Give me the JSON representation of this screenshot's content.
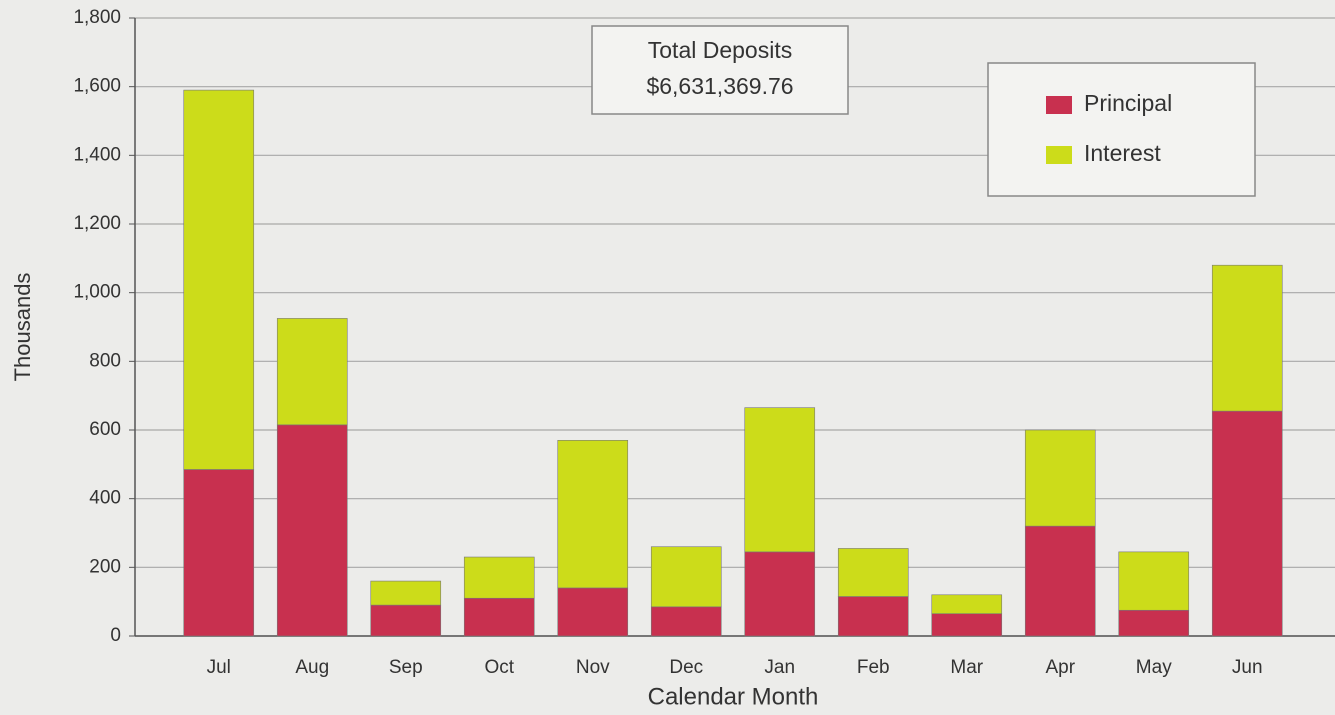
{
  "chart_data": {
    "type": "stacked_bar",
    "x_label": "Calendar Month",
    "y_label": "Thousands",
    "annotation": [
      "Total Deposits",
      "$6,631,369.76"
    ],
    "categories": [
      "Jul",
      "Aug",
      "Sep",
      "Oct",
      "Nov",
      "Dec",
      "Jan",
      "Feb",
      "Mar",
      "Apr",
      "May",
      "Jun"
    ],
    "series": [
      {
        "name": "Principal",
        "color": "#c8304f",
        "values": [
          485,
          615,
          90,
          110,
          140,
          85,
          245,
          115,
          65,
          320,
          75,
          655
        ]
      },
      {
        "name": "Interest",
        "color": "#ccdc1a",
        "values": [
          1105,
          310,
          70,
          120,
          430,
          175,
          420,
          140,
          55,
          280,
          170,
          425
        ]
      }
    ],
    "ylim": [
      0,
      1800
    ],
    "yticks": [
      0,
      200,
      400,
      600,
      800,
      {
        "value": 1000,
        "label": "1,000"
      },
      {
        "value": 1200,
        "label": "1,200"
      },
      {
        "value": 1400,
        "label": "1,400"
      },
      {
        "value": 1600,
        "label": "1,600"
      },
      {
        "value": 1800,
        "label": "1,800"
      }
    ],
    "grid": true,
    "legend": "upper right"
  }
}
